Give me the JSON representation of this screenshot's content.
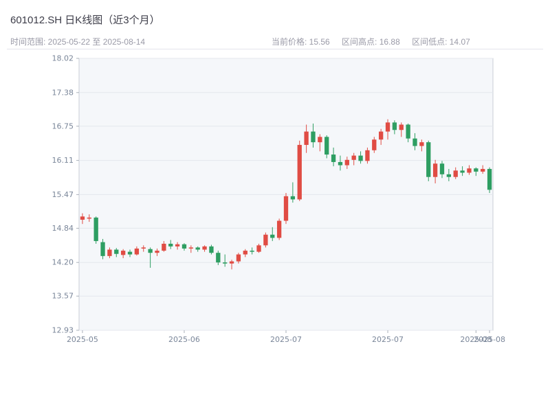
{
  "header": {
    "title": "601012.SH 日K线图（近3个月）",
    "date_range_label": "时间范围: 2025-05-22 至 2025-08-14",
    "current_price_label": "当前价格: 15.56",
    "range_high_label": "区间高点: 16.88",
    "range_low_label": "区间低点: 14.07"
  },
  "chart_data": {
    "type": "candlestick",
    "title": "601012.SH 日K线图（近3个月）",
    "symbol": "601012.SH",
    "current_price": 15.56,
    "range_high": 16.88,
    "range_low": 14.07,
    "ylim": [
      12.93,
      18.02
    ],
    "y_ticks": [
      18.02,
      17.38,
      16.75,
      16.11,
      15.47,
      14.84,
      14.2,
      13.57,
      12.93
    ],
    "x_ticks": [
      {
        "pos": 0,
        "label": "2025-05"
      },
      {
        "pos": 15,
        "label": "2025-06"
      },
      {
        "pos": 30,
        "label": "2025-07"
      },
      {
        "pos": 45,
        "label": "2025-07"
      },
      {
        "pos": 58,
        "label": "2025-08"
      },
      {
        "pos": 60,
        "label": "2025-08"
      }
    ],
    "grid": true,
    "legend": "none",
    "up_color": "#e04c44",
    "down_color": "#2e9e62",
    "plot_bg": "#f5f7fa",
    "grid_color": "#e4e7ed",
    "border_color": "#c9ced6",
    "axis_color": "#aab0ba",
    "tick_color": "#7a8699",
    "candles": [
      {
        "d": "2025-05-22",
        "o": 15.0,
        "h": 15.12,
        "l": 14.92,
        "c": 15.06
      },
      {
        "d": "2025-05-23",
        "o": 15.02,
        "h": 15.1,
        "l": 14.96,
        "c": 15.04
      },
      {
        "d": "2025-05-26",
        "o": 15.04,
        "h": 15.06,
        "l": 14.55,
        "c": 14.6
      },
      {
        "d": "2025-05-27",
        "o": 14.58,
        "h": 14.64,
        "l": 14.26,
        "c": 14.32
      },
      {
        "d": "2025-05-28",
        "o": 14.32,
        "h": 14.48,
        "l": 14.28,
        "c": 14.44
      },
      {
        "d": "2025-05-29",
        "o": 14.44,
        "h": 14.47,
        "l": 14.3,
        "c": 14.36
      },
      {
        "d": "2025-05-30",
        "o": 14.34,
        "h": 14.45,
        "l": 14.28,
        "c": 14.42
      },
      {
        "d": "2025-06-02",
        "o": 14.4,
        "h": 14.44,
        "l": 14.3,
        "c": 14.35
      },
      {
        "d": "2025-06-03",
        "o": 14.35,
        "h": 14.5,
        "l": 14.33,
        "c": 14.46
      },
      {
        "d": "2025-06-04",
        "o": 14.46,
        "h": 14.52,
        "l": 14.4,
        "c": 14.48
      },
      {
        "d": "2025-06-05",
        "o": 14.45,
        "h": 14.48,
        "l": 14.1,
        "c": 14.38
      },
      {
        "d": "2025-06-06",
        "o": 14.38,
        "h": 14.46,
        "l": 14.32,
        "c": 14.42
      },
      {
        "d": "2025-06-09",
        "o": 14.42,
        "h": 14.6,
        "l": 14.4,
        "c": 14.55
      },
      {
        "d": "2025-06-10",
        "o": 14.55,
        "h": 14.62,
        "l": 14.45,
        "c": 14.5
      },
      {
        "d": "2025-06-11",
        "o": 14.5,
        "h": 14.58,
        "l": 14.44,
        "c": 14.54
      },
      {
        "d": "2025-06-12",
        "o": 14.54,
        "h": 14.56,
        "l": 14.42,
        "c": 14.46
      },
      {
        "d": "2025-06-13",
        "o": 14.46,
        "h": 14.52,
        "l": 14.38,
        "c": 14.48
      },
      {
        "d": "2025-06-16",
        "o": 14.48,
        "h": 14.5,
        "l": 14.4,
        "c": 14.44
      },
      {
        "d": "2025-06-17",
        "o": 14.44,
        "h": 14.52,
        "l": 14.4,
        "c": 14.5
      },
      {
        "d": "2025-06-18",
        "o": 14.5,
        "h": 14.53,
        "l": 14.35,
        "c": 14.38
      },
      {
        "d": "2025-06-19",
        "o": 14.38,
        "h": 14.42,
        "l": 14.15,
        "c": 14.2
      },
      {
        "d": "2025-06-20",
        "o": 14.2,
        "h": 14.35,
        "l": 14.12,
        "c": 14.18
      },
      {
        "d": "2025-06-23",
        "o": 14.18,
        "h": 14.25,
        "l": 14.07,
        "c": 14.22
      },
      {
        "d": "2025-06-24",
        "o": 14.22,
        "h": 14.38,
        "l": 14.18,
        "c": 14.35
      },
      {
        "d": "2025-06-25",
        "o": 14.35,
        "h": 14.45,
        "l": 14.3,
        "c": 14.42
      },
      {
        "d": "2025-06-26",
        "o": 14.42,
        "h": 14.48,
        "l": 14.35,
        "c": 14.4
      },
      {
        "d": "2025-06-27",
        "o": 14.4,
        "h": 14.55,
        "l": 14.38,
        "c": 14.52
      },
      {
        "d": "2025-06-30",
        "o": 14.52,
        "h": 14.76,
        "l": 14.48,
        "c": 14.72
      },
      {
        "d": "2025-07-01",
        "o": 14.72,
        "h": 14.86,
        "l": 14.6,
        "c": 14.66
      },
      {
        "d": "2025-07-02",
        "o": 14.66,
        "h": 15.02,
        "l": 14.62,
        "c": 14.98
      },
      {
        "d": "2025-07-03",
        "o": 14.98,
        "h": 15.5,
        "l": 14.92,
        "c": 15.44
      },
      {
        "d": "2025-07-04",
        "o": 15.44,
        "h": 15.7,
        "l": 15.32,
        "c": 15.38
      },
      {
        "d": "2025-07-07",
        "o": 15.38,
        "h": 16.48,
        "l": 15.35,
        "c": 16.4
      },
      {
        "d": "2025-07-08",
        "o": 16.4,
        "h": 16.78,
        "l": 16.25,
        "c": 16.65
      },
      {
        "d": "2025-07-09",
        "o": 16.65,
        "h": 16.8,
        "l": 16.35,
        "c": 16.45
      },
      {
        "d": "2025-07-10",
        "o": 16.45,
        "h": 16.6,
        "l": 16.28,
        "c": 16.55
      },
      {
        "d": "2025-07-11",
        "o": 16.55,
        "h": 16.58,
        "l": 16.15,
        "c": 16.22
      },
      {
        "d": "2025-07-14",
        "o": 16.22,
        "h": 16.35,
        "l": 16.0,
        "c": 16.08
      },
      {
        "d": "2025-07-15",
        "o": 16.08,
        "h": 16.2,
        "l": 15.92,
        "c": 16.02
      },
      {
        "d": "2025-07-16",
        "o": 16.02,
        "h": 16.18,
        "l": 15.95,
        "c": 16.12
      },
      {
        "d": "2025-07-17",
        "o": 16.12,
        "h": 16.25,
        "l": 16.02,
        "c": 16.2
      },
      {
        "d": "2025-07-18",
        "o": 16.2,
        "h": 16.28,
        "l": 16.05,
        "c": 16.1
      },
      {
        "d": "2025-07-21",
        "o": 16.1,
        "h": 16.35,
        "l": 16.05,
        "c": 16.3
      },
      {
        "d": "2025-07-22",
        "o": 16.3,
        "h": 16.55,
        "l": 16.25,
        "c": 16.5
      },
      {
        "d": "2025-07-23",
        "o": 16.5,
        "h": 16.7,
        "l": 16.4,
        "c": 16.65
      },
      {
        "d": "2025-07-24",
        "o": 16.65,
        "h": 16.88,
        "l": 16.5,
        "c": 16.82
      },
      {
        "d": "2025-07-25",
        "o": 16.82,
        "h": 16.86,
        "l": 16.6,
        "c": 16.68
      },
      {
        "d": "2025-07-28",
        "o": 16.68,
        "h": 16.82,
        "l": 16.55,
        "c": 16.78
      },
      {
        "d": "2025-07-29",
        "o": 16.78,
        "h": 16.8,
        "l": 16.45,
        "c": 16.52
      },
      {
        "d": "2025-07-30",
        "o": 16.52,
        "h": 16.62,
        "l": 16.3,
        "c": 16.38
      },
      {
        "d": "2025-07-31",
        "o": 16.38,
        "h": 16.5,
        "l": 16.28,
        "c": 16.45
      },
      {
        "d": "2025-08-01",
        "o": 16.45,
        "h": 16.48,
        "l": 15.72,
        "c": 15.8
      },
      {
        "d": "2025-08-04",
        "o": 15.8,
        "h": 16.12,
        "l": 15.68,
        "c": 16.05
      },
      {
        "d": "2025-08-05",
        "o": 16.05,
        "h": 16.1,
        "l": 15.78,
        "c": 15.85
      },
      {
        "d": "2025-08-06",
        "o": 15.85,
        "h": 15.95,
        "l": 15.72,
        "c": 15.8
      },
      {
        "d": "2025-08-07",
        "o": 15.8,
        "h": 15.98,
        "l": 15.76,
        "c": 15.92
      },
      {
        "d": "2025-08-08",
        "o": 15.92,
        "h": 16.0,
        "l": 15.82,
        "c": 15.88
      },
      {
        "d": "2025-08-11",
        "o": 15.88,
        "h": 16.02,
        "l": 15.84,
        "c": 15.96
      },
      {
        "d": "2025-08-12",
        "o": 15.96,
        "h": 15.98,
        "l": 15.82,
        "c": 15.9
      },
      {
        "d": "2025-08-13",
        "o": 15.9,
        "h": 16.02,
        "l": 15.86,
        "c": 15.95
      },
      {
        "d": "2025-08-14",
        "o": 15.95,
        "h": 15.98,
        "l": 15.5,
        "c": 15.56
      }
    ]
  }
}
